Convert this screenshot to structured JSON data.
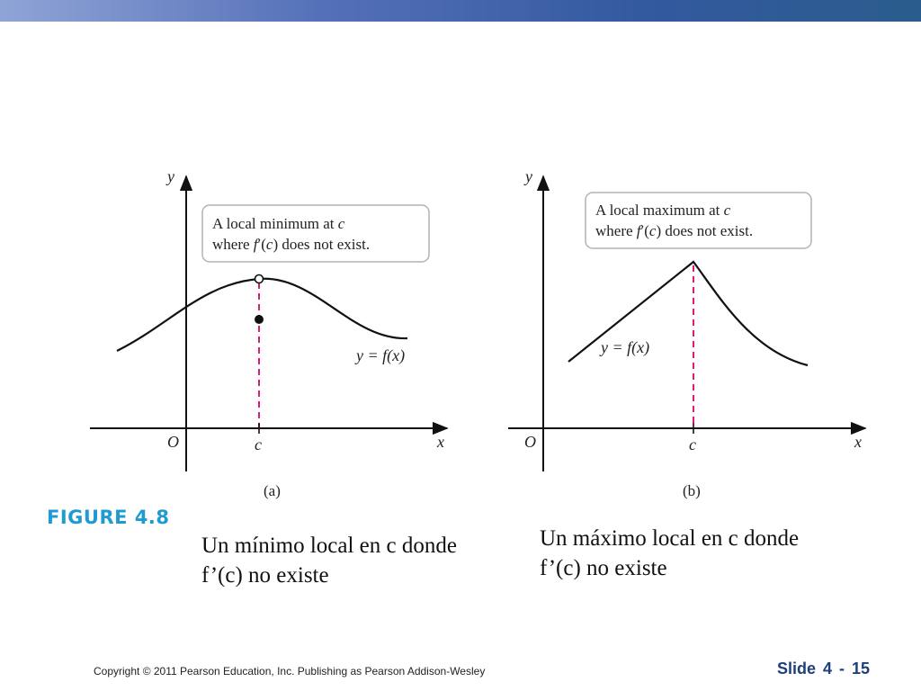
{
  "figure": {
    "label": "FIGURE 4.8",
    "label_color": "#1f9bd1",
    "curve_color": "#111111",
    "dash_color": "#e0197a",
    "panel_a": {
      "tag": "(a)",
      "callout_line1_prefix": "A local minimum at ",
      "callout_line1_var": "c",
      "callout_line2_prefix": "where ",
      "callout_line2_func": "f",
      "callout_line2_prime": "′(",
      "callout_line2_var": "c",
      "callout_line2_suffix": ") does not exist.",
      "curve_label": "y = f(x)",
      "axis_y": "y",
      "axis_x": "x",
      "origin": "O",
      "tick_c": "c"
    },
    "panel_b": {
      "tag": "(b)",
      "callout_line1_prefix": "A local maximum at ",
      "callout_line1_var": "c",
      "callout_line2_prefix": "where ",
      "callout_line2_func": "f",
      "callout_line2_prime": "′(",
      "callout_line2_var": "c",
      "callout_line2_suffix": ") does not exist.",
      "curve_label": "y = f(x)",
      "axis_y": "y",
      "axis_x": "x",
      "origin": "O",
      "tick_c": "c"
    }
  },
  "captions": {
    "a_line1": "Un mínimo local en c donde",
    "a_line2": "f’(c) no existe",
    "b_line1": "Un máximo local en c donde",
    "b_line2": "f’(c) no existe"
  },
  "footer": {
    "copyright": "Copyright © 2011 Pearson Education, Inc.  Publishing as Pearson Addison-Wesley",
    "slide": "Slide  4 -  15"
  }
}
